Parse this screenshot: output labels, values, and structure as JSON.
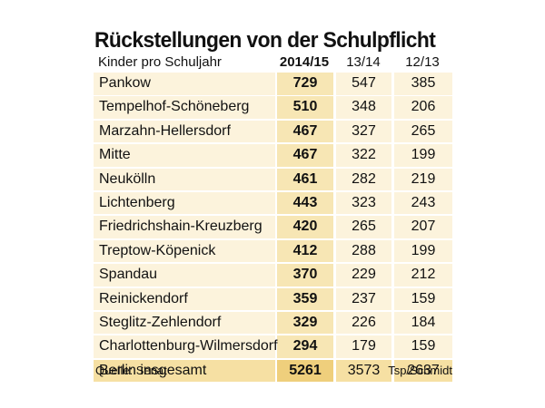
{
  "chart_data": {
    "type": "table",
    "title": "Rückstellungen von der Schulpflicht",
    "row_header_label": "Kinder pro Schuljahr",
    "columns": [
      "2014/15",
      "13/14",
      "12/13"
    ],
    "rows": [
      {
        "name": "Pankow",
        "values": [
          729,
          547,
          385
        ]
      },
      {
        "name": "Tempelhof-Schöneberg",
        "values": [
          510,
          348,
          206
        ]
      },
      {
        "name": "Marzahn-Hellersdorf",
        "values": [
          467,
          327,
          265
        ]
      },
      {
        "name": "Mitte",
        "values": [
          467,
          322,
          199
        ]
      },
      {
        "name": "Neukölln",
        "values": [
          461,
          282,
          219
        ]
      },
      {
        "name": "Lichtenberg",
        "values": [
          443,
          323,
          243
        ]
      },
      {
        "name": "Friedrichshain-Kreuzberg",
        "values": [
          420,
          265,
          207
        ]
      },
      {
        "name": "Treptow-Köpenick",
        "values": [
          412,
          288,
          199
        ]
      },
      {
        "name": "Spandau",
        "values": [
          370,
          229,
          212
        ]
      },
      {
        "name": "Reinickendorf",
        "values": [
          359,
          237,
          159
        ]
      },
      {
        "name": "Steglitz-Zehlendorf",
        "values": [
          329,
          226,
          184
        ]
      },
      {
        "name": "Charlottenburg-Wilmersdorf",
        "values": [
          294,
          179,
          159
        ]
      }
    ],
    "total": {
      "name": "Berlin insgesamt",
      "values": [
        5261,
        3573,
        2637
      ]
    },
    "source": "Quelle: Senat",
    "credit": "Tsp/Schmidt"
  },
  "colors": {
    "row_light": "#fcf3dc",
    "row_highlight": "#f7e6b4",
    "total_light": "#f6e0a3",
    "total_highlight": "#efcf7c",
    "text": "#111111"
  }
}
